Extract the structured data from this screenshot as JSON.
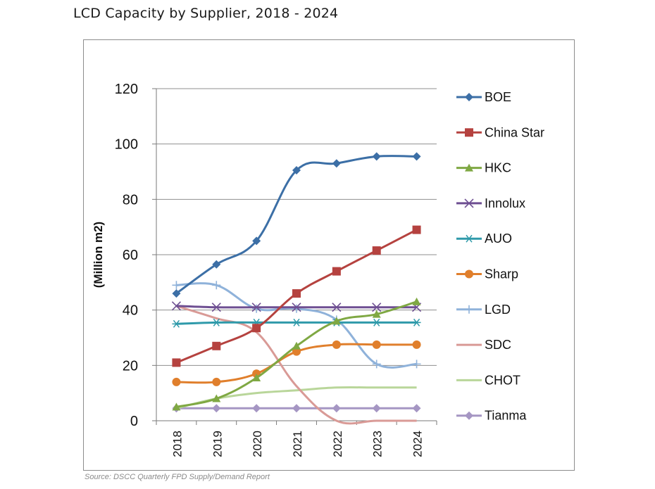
{
  "page": {
    "title": "LCD Capacity by Supplier, 2018 - 2024",
    "source": "Source: DSCC Quarterly FPD Supply/Demand Report"
  },
  "chart_data": {
    "type": "line",
    "title": "",
    "xlabel": "",
    "ylabel": "(Million m2)",
    "categories": [
      "2018",
      "2019",
      "2020",
      "2021",
      "2022",
      "2023",
      "2024"
    ],
    "ylim": [
      0,
      120
    ],
    "yticks": [
      "0",
      "20",
      "40",
      "60",
      "80",
      "100",
      "120"
    ],
    "grid": true,
    "legend_position": "right",
    "series": [
      {
        "name": "BOE",
        "color": "#3c6fa6",
        "marker": "diamond",
        "values": [
          46,
          56.5,
          65,
          90.5,
          93,
          95.5,
          95.5
        ]
      },
      {
        "name": "China Star",
        "color": "#b5423f",
        "marker": "square",
        "values": [
          21,
          27,
          33.5,
          46,
          54,
          61.5,
          69
        ]
      },
      {
        "name": "HKC",
        "color": "#7fa843",
        "marker": "triangle",
        "values": [
          5,
          8,
          15.5,
          27,
          36,
          38.5,
          43
        ]
      },
      {
        "name": "Innolux",
        "color": "#6e4f92",
        "marker": "x",
        "values": [
          41.5,
          41,
          41,
          41,
          41,
          41,
          41
        ]
      },
      {
        "name": "AUO",
        "color": "#2f9aaa",
        "marker": "asterisk",
        "values": [
          35,
          35.5,
          35.5,
          35.5,
          35.5,
          35.5,
          35.5
        ]
      },
      {
        "name": "Sharp",
        "color": "#e07f2c",
        "marker": "circle",
        "values": [
          14,
          14,
          17,
          25,
          27.5,
          27.5,
          27.5
        ]
      },
      {
        "name": "LGD",
        "color": "#8fb2da",
        "marker": "plus",
        "values": [
          49,
          49,
          40.5,
          40.5,
          36.5,
          20.5,
          20.5
        ]
      },
      {
        "name": "SDC",
        "color": "#d99a96",
        "marker": "none",
        "values": [
          41.5,
          37,
          32,
          12.5,
          0,
          0,
          0
        ]
      },
      {
        "name": "CHOT",
        "color": "#b9d69a",
        "marker": "none",
        "values": [
          4.5,
          8,
          10,
          11,
          12,
          12,
          12
        ]
      },
      {
        "name": "Tianma",
        "color": "#a596c3",
        "marker": "diamond",
        "values": [
          4.5,
          4.5,
          4.5,
          4.5,
          4.5,
          4.5,
          4.5
        ]
      }
    ]
  }
}
